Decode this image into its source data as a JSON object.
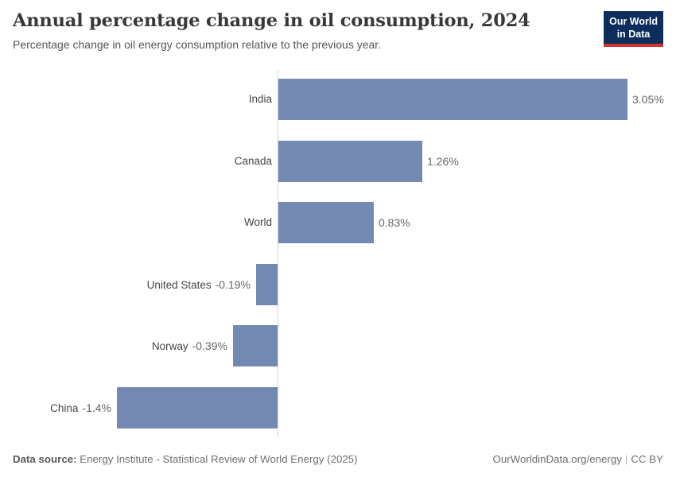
{
  "header": {
    "title": "Annual percentage change in oil consumption, 2024",
    "subtitle": "Percentage change in oil energy consumption relative to the previous year.",
    "logo": {
      "line1": "Our World",
      "line2": "in Data"
    }
  },
  "chart_data": {
    "type": "bar",
    "orientation": "horizontal",
    "title": "Annual percentage change in oil consumption, 2024",
    "categories": [
      "India",
      "Canada",
      "World",
      "United States",
      "Norway",
      "China"
    ],
    "values": [
      3.05,
      1.26,
      0.83,
      -0.19,
      -0.39,
      -1.4
    ],
    "value_labels": [
      "3.05%",
      "1.26%",
      "0.83%",
      "-0.19%",
      "-0.39%",
      "-1.4%"
    ],
    "unit": "%",
    "xlim": [
      -1.4,
      3.05
    ],
    "grid": false,
    "bar_color": "#7489b1",
    "axis_color": "#d5d5d5"
  },
  "footer": {
    "source_label": "Data source:",
    "source_text": " Energy Institute - Statistical Review of World Energy (2025)",
    "url": "OurWorldinData.org/energy",
    "separator": "|",
    "license": "CC BY"
  },
  "colors": {
    "logo_navy": "#0d2e5c",
    "logo_red": "#d0342c",
    "title_text": "#383838",
    "bar_blue": "#7489b1"
  }
}
